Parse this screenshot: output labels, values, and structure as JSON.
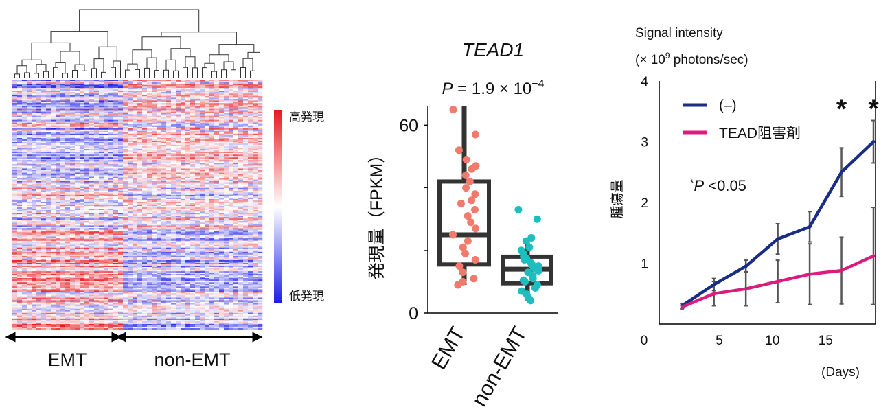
{
  "chart_data": [
    {
      "type": "heatmap",
      "groups": [
        "EMT",
        "non-EMT"
      ],
      "colorbar": {
        "high_label": "高発現",
        "low_label": "低発現"
      },
      "colors": {
        "high": "#e8191c",
        "mid": "#ffffff",
        "low": "#1c1ce8"
      }
    },
    {
      "type": "scatter",
      "title": "TEAD1",
      "pvalue": {
        "prefix": "P",
        "mid": " = 1.9 × 10",
        "exp": "−4"
      },
      "ylabel": "発現量（FPKM）",
      "categories": [
        "EMT",
        "non-EMT"
      ],
      "yticks": [
        "0",
        "60"
      ],
      "ylim": [
        0,
        66
      ],
      "box": [
        {
          "q1": 15.5,
          "median": 25,
          "q3": 42,
          "whisker_low": 9,
          "whisker_high": 66
        },
        {
          "q1": 9.5,
          "median": 14,
          "q3": 18,
          "whisker_low": 4,
          "whisker_high": 23
        }
      ],
      "points": [
        {
          "group": "EMT",
          "color": "#f07a6c",
          "values": [
            65,
            57,
            52,
            49,
            47,
            46,
            44,
            42,
            40,
            38,
            36,
            35,
            33,
            31,
            29,
            27,
            25,
            23,
            21,
            19,
            17,
            15,
            13,
            11,
            10,
            9
          ]
        },
        {
          "group": "non-EMT",
          "color": "#1fbdbd",
          "values": [
            33,
            30,
            24,
            23,
            21,
            20,
            19,
            18,
            17.5,
            17,
            16,
            15.5,
            15,
            14.5,
            14,
            13.5,
            13,
            12,
            11,
            10.5,
            10,
            9,
            8,
            7,
            6,
            5,
            4
          ]
        }
      ]
    },
    {
      "type": "line",
      "top_label_line1": "Signal intensity",
      "top_label_line2_pre": "(× 10",
      "top_label_line2_sup": "9",
      "top_label_line2_post": " photons/sec)",
      "ylabel": "腫瘍量",
      "xlabel": "(Days)",
      "xticks": [
        "0",
        "5",
        "10",
        "15"
      ],
      "yticks": [
        "1",
        "2",
        "3",
        "4"
      ],
      "xlim": [
        0,
        19.5
      ],
      "ylim": [
        0,
        4
      ],
      "x": [
        1.5,
        4.5,
        7.5,
        10.5,
        13.5,
        16.5,
        19.5
      ],
      "series": [
        {
          "name": "(–)",
          "color": "#1a2d86",
          "values": [
            0.3,
            0.65,
            0.95,
            1.4,
            1.6,
            2.5,
            3.0
          ],
          "err": [
            0.04,
            0.1,
            0.1,
            0.25,
            0.25,
            0.4,
            0.35
          ]
        },
        {
          "name": "TEAD阻害剤",
          "color": "#dc1c7c",
          "values": [
            0.28,
            0.5,
            0.58,
            0.7,
            0.82,
            0.88,
            1.12
          ],
          "err": [
            0.03,
            0.2,
            0.28,
            0.35,
            0.5,
            0.55,
            0.8
          ]
        }
      ],
      "significance": {
        "symbol": "*",
        "x": [
          16.5,
          19.5
        ]
      },
      "annotation": {
        "prefix": "*",
        "italic": "P",
        "suffix": " <0.05"
      }
    }
  ]
}
